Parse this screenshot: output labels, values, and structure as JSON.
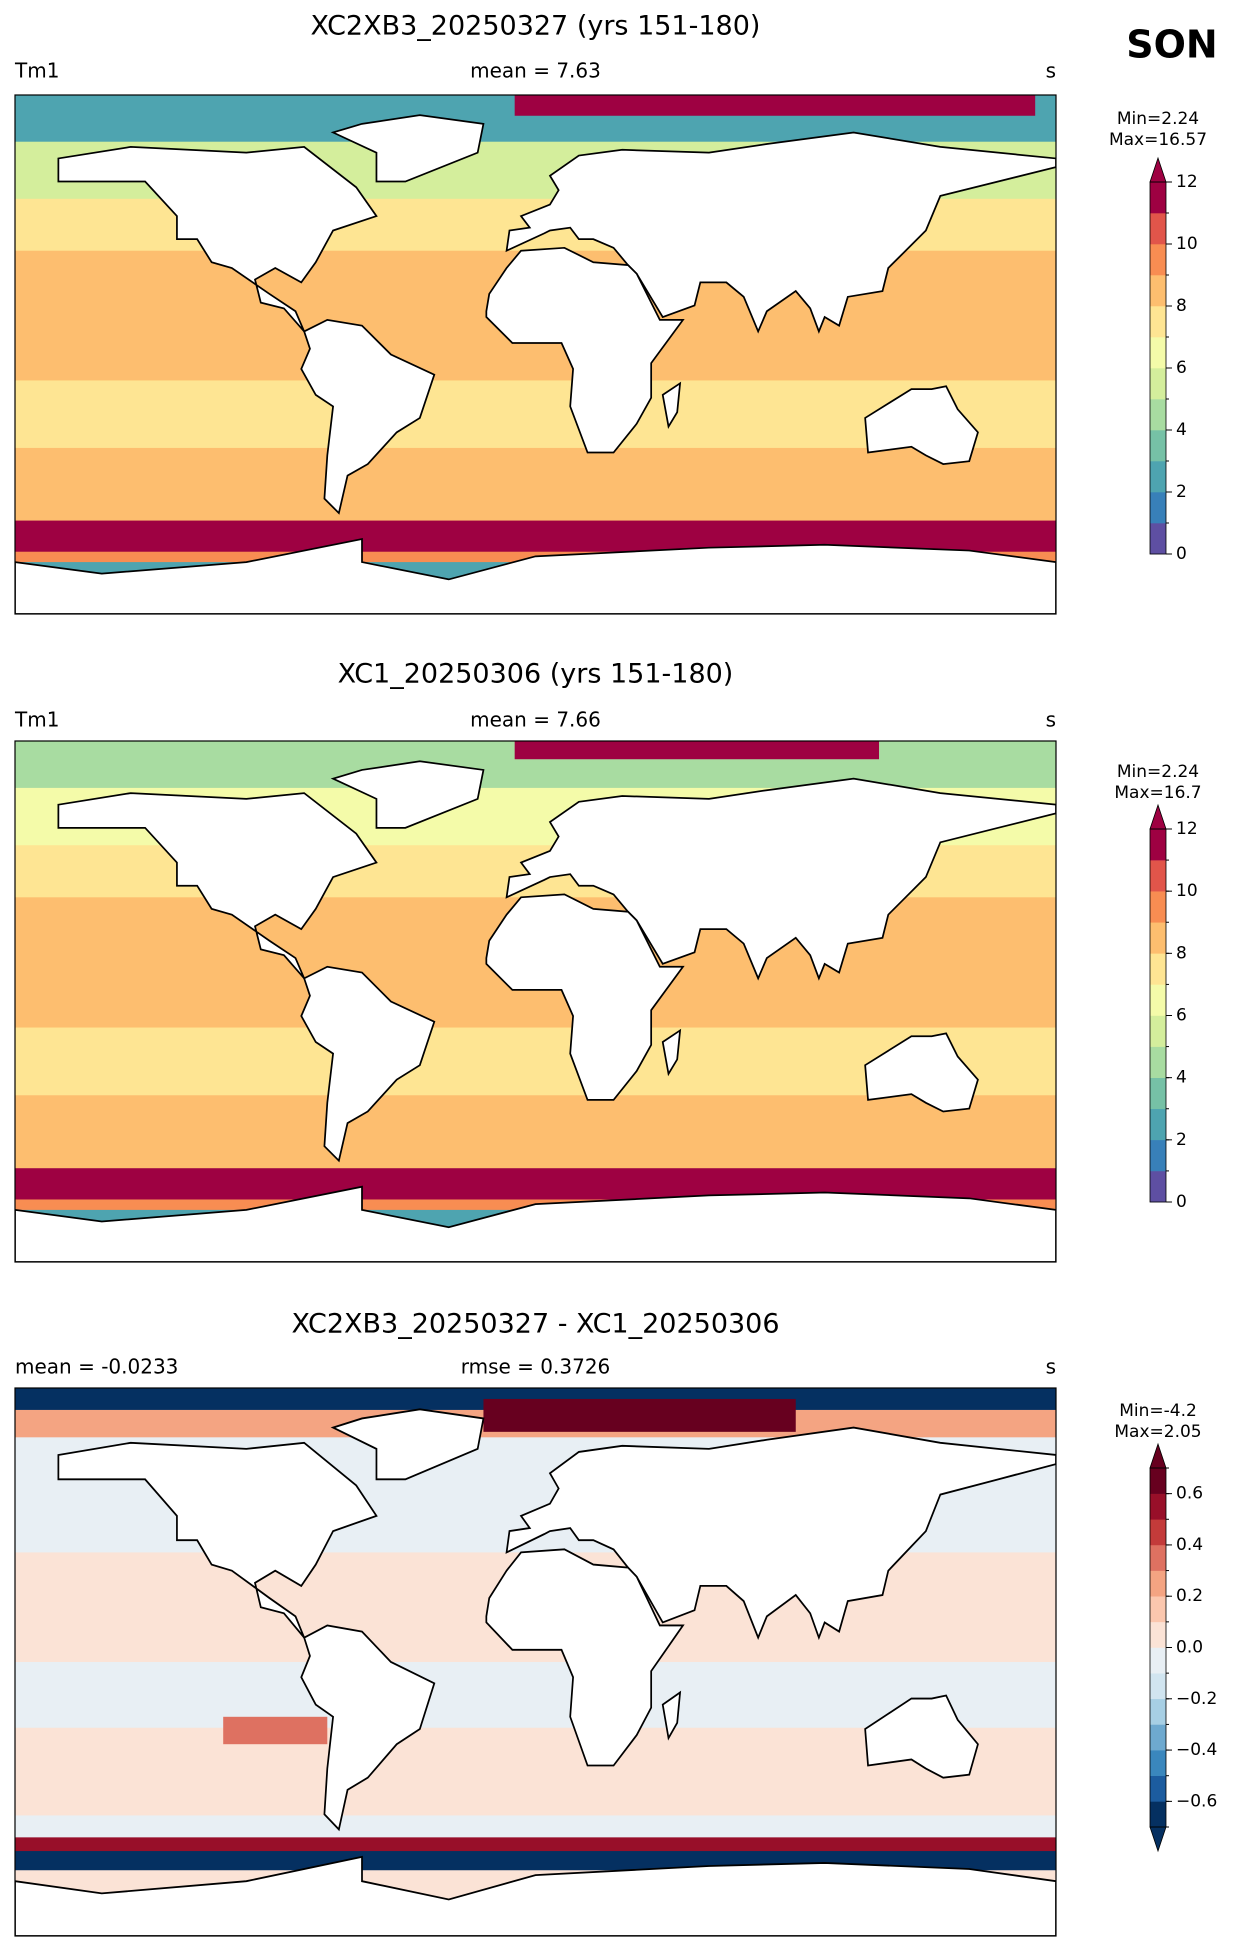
{
  "season": "SON",
  "panels": [
    {
      "title": "XC2XB3_20250327 (yrs 151-180)",
      "left_label": "Tm1",
      "center_label": "mean = 7.63",
      "right_label": "s",
      "min_label": "Min=2.24",
      "max_label": "Max=16.57",
      "colorbar": {
        "levels": [
          0,
          1,
          2,
          3,
          4,
          5,
          6,
          7,
          8,
          9,
          10,
          11,
          12
        ],
        "ticks": [
          0,
          2,
          4,
          6,
          8,
          10,
          12
        ],
        "extend": "max",
        "colors": [
          "#5e4fa2",
          "#3880b9",
          "#4ea4b0",
          "#76c1a6",
          "#a8dca1",
          "#d4ee9c",
          "#f4fba9",
          "#fee593",
          "#fdbe6f",
          "#f88d52",
          "#e1554a",
          "#9e0142"
        ]
      }
    },
    {
      "title": "XC1_20250306 (yrs 151-180)",
      "left_label": "Tm1",
      "center_label": "mean = 7.66",
      "right_label": "s",
      "min_label": "Min=2.24",
      "max_label": "Max=16.7",
      "colorbar": {
        "levels": [
          0,
          1,
          2,
          3,
          4,
          5,
          6,
          7,
          8,
          9,
          10,
          11,
          12
        ],
        "ticks": [
          0,
          2,
          4,
          6,
          8,
          10,
          12
        ],
        "extend": "max",
        "colors": [
          "#5e4fa2",
          "#3880b9",
          "#4ea4b0",
          "#76c1a6",
          "#a8dca1",
          "#d4ee9c",
          "#f4fba9",
          "#fee593",
          "#fdbe6f",
          "#f88d52",
          "#e1554a",
          "#9e0142"
        ]
      }
    },
    {
      "title": "XC2XB3_20250327 - XC1_20250306",
      "left_label": "mean = -0.0233",
      "center_label": "rmse = 0.3726",
      "right_label": "s",
      "min_label": "Min=-4.2",
      "max_label": "Max=2.05",
      "colorbar": {
        "levels": [
          -0.7,
          -0.6,
          -0.5,
          -0.4,
          -0.3,
          -0.2,
          -0.1,
          0,
          0.1,
          0.2,
          0.3,
          0.4,
          0.5,
          0.6,
          0.7
        ],
        "ticks": [
          {
            "value": -0.6,
            "label": "−0.6"
          },
          {
            "value": -0.4,
            "label": "−0.4"
          },
          {
            "value": -0.2,
            "label": "−0.2"
          },
          {
            "value": 0,
            "label": "0.0"
          },
          0.2,
          0.4,
          0.6
        ],
        "extend": "both",
        "colors": [
          "#053061",
          "#1c5c9f",
          "#3a87bd",
          "#6ea9cf",
          "#a7cfe4",
          "#d1e5f0",
          "#e8eff4",
          "#fbe3d6",
          "#fbc7ae",
          "#f4a482",
          "#de7161",
          "#c33b3a",
          "#980f29",
          "#67001f"
        ]
      }
    }
  ]
}
